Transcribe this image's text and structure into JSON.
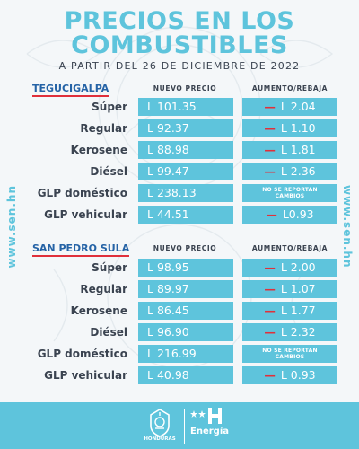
{
  "header": {
    "title_line1": "PRECIOS EN LOS",
    "title_line2": "COMBUSTIBLES",
    "subtitle": "A PARTIR DEL 26 DE DICIEMBRE DE 2022"
  },
  "side_url": "www.sen.hn",
  "columns": {
    "new_price": "NUEVO PRECIO",
    "change": "AUMENTO/REBAJA"
  },
  "change_marker": "—",
  "sections": [
    {
      "city": "TEGUCIGALPA",
      "rows": [
        {
          "fuel": "Súper",
          "price": "L 101.35",
          "change": "L 2.04"
        },
        {
          "fuel": "Regular",
          "price": "L 92.37",
          "change": "L 1.10"
        },
        {
          "fuel": "Kerosene",
          "price": "L 88.98",
          "change": "L 1.81"
        },
        {
          "fuel": "Diésel",
          "price": "L 99.47",
          "change": "L 2.36"
        },
        {
          "fuel": "GLP doméstico",
          "price": "L 238.13",
          "note_line1": "NO SE REPORTAN",
          "note_line2": "CAMBIOS"
        },
        {
          "fuel": "GLP vehicular",
          "price": "L 44.51",
          "change": "L0.93"
        }
      ]
    },
    {
      "city": "SAN PEDRO SULA",
      "rows": [
        {
          "fuel": "Súper",
          "price": "L 98.95",
          "change": "L 2.00"
        },
        {
          "fuel": "Regular",
          "price": "L 89.97",
          "change": "L 1.07"
        },
        {
          "fuel": "Kerosene",
          "price": "L 86.45",
          "change": "L 1.77"
        },
        {
          "fuel": "Diésel",
          "price": "L 96.90",
          "change": "L 2.32"
        },
        {
          "fuel": "GLP doméstico",
          "price": "L 216.99",
          "note_line1": "NO SE REPORTAN",
          "note_line2": "CAMBIOS"
        },
        {
          "fuel": "GLP vehicular",
          "price": "L 40.98",
          "change": "L 0.93"
        }
      ]
    }
  ],
  "footer": {
    "honduras_label": "HONDURAS",
    "energia_label": "Energía",
    "icon_names": [
      "honduras-emblem-icon",
      "energia-logo-icon"
    ]
  },
  "colors": {
    "accent": "#5ec4dc",
    "city": "#2563a6",
    "marker": "#e0303b",
    "text": "#3a4350"
  }
}
